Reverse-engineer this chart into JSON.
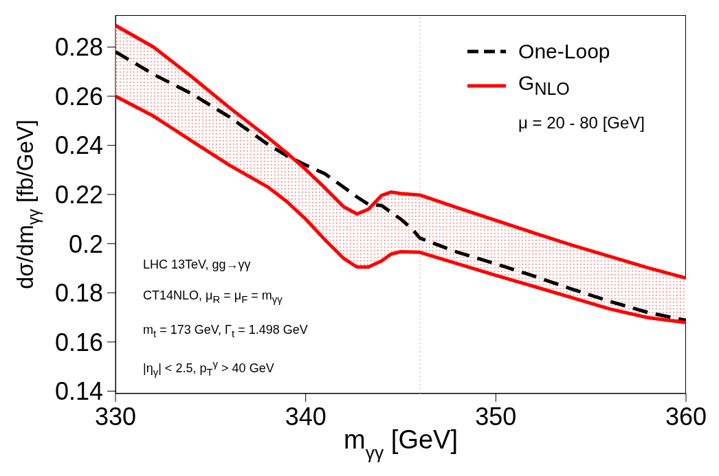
{
  "chart_data": {
    "type": "line",
    "xlabel": "m$_{γγ}$ [GeV]",
    "ylabel": "dσ/dm$_{γγ}$ [fb/GeV]",
    "xlim": [
      330,
      360
    ],
    "xticks": [
      330,
      340,
      350,
      360
    ],
    "ylim": [
      0.139,
      0.293
    ],
    "yticks": [
      0.14,
      0.16,
      0.18,
      0.2,
      0.22,
      0.24,
      0.26,
      0.28
    ],
    "legend": "top right",
    "series": [
      {
        "name": "One-Loop",
        "color": "#000000",
        "line_style": "dashed",
        "x": [
          330,
          332,
          334,
          336,
          338,
          339,
          340,
          341,
          342,
          342.7,
          343.3,
          344,
          344.5,
          345,
          345.6,
          346,
          346.6,
          348,
          350,
          352,
          354,
          356,
          358,
          360
        ],
        "values": [
          0.2781,
          0.2689,
          0.261,
          0.2515,
          0.2405,
          0.2358,
          0.232,
          0.2285,
          0.223,
          0.219,
          0.216,
          0.2155,
          0.2127,
          0.21,
          0.206,
          0.2023,
          0.2005,
          0.1965,
          0.1918,
          0.1868,
          0.1815,
          0.1765,
          0.172,
          0.1688
        ]
      },
      {
        "name": "G$_{NLO}$",
        "color": "#ff0000",
        "line_style": "solid",
        "x": [
          330,
          332,
          334,
          336,
          338,
          339,
          340,
          341,
          342,
          342.7,
          343.3,
          344,
          344.5,
          345,
          346,
          348,
          350,
          352,
          354,
          356,
          358,
          360
        ],
        "values": [
          0.2888,
          0.28,
          0.268,
          0.2553,
          0.2433,
          0.237,
          0.2302,
          0.2228,
          0.215,
          0.2121,
          0.214,
          0.2197,
          0.221,
          0.2204,
          0.2198,
          0.2146,
          0.2095,
          0.2044,
          0.1994,
          0.1948,
          0.1902,
          0.186
        ],
        "lower": [
          0.26,
          0.2519,
          0.2418,
          0.2319,
          0.2231,
          0.2172,
          0.21,
          0.2017,
          0.194,
          0.1905,
          0.1905,
          0.193,
          0.1958,
          0.1967,
          0.1965,
          0.1918,
          0.1871,
          0.1826,
          0.178,
          0.1734,
          0.1699,
          0.1679
        ],
        "upper": [
          0.2888,
          0.28,
          0.268,
          0.2553,
          0.2433,
          0.237,
          0.2302,
          0.2228,
          0.215,
          0.2121,
          0.214,
          0.2197,
          0.221,
          0.2204,
          0.2198,
          0.2146,
          0.2095,
          0.2044,
          0.1994,
          0.1948,
          0.1902,
          0.186
        ]
      },
      {
        "color": "#ff0000",
        "line_style": "solid",
        "x": [
          330,
          332,
          334,
          336,
          338,
          339,
          340,
          341,
          342,
          342.7,
          343.3,
          344,
          344.5,
          345,
          346,
          348,
          350,
          352,
          354,
          356,
          358,
          360
        ],
        "values": [
          0.26,
          0.2519,
          0.2418,
          0.2319,
          0.2231,
          0.2172,
          0.21,
          0.2017,
          0.194,
          0.1905,
          0.1905,
          0.193,
          0.1958,
          0.1967,
          0.1965,
          0.1918,
          0.1871,
          0.1826,
          0.178,
          0.1734,
          0.1699,
          0.1679
        ]
      }
    ],
    "ref_lines": [
      {
        "axis": "x",
        "value": 346,
        "color": "#cccccc",
        "line_style": "dotted"
      }
    ],
    "annotations": [
      "μ = 20 - 80 [GeV]",
      "LHC 13TeV, gg→γγ",
      "CT14NLO, μ$_{R}$ = μ$_{F}$ = m$_{γγ}$",
      "m$_{t}$ = 173 GeV, Γ$_{t}$ = 1.498 GeV",
      "|η$_{γ}$| < 2.5, p$_{T}$$^{γ}$ > 40 GeV"
    ]
  }
}
